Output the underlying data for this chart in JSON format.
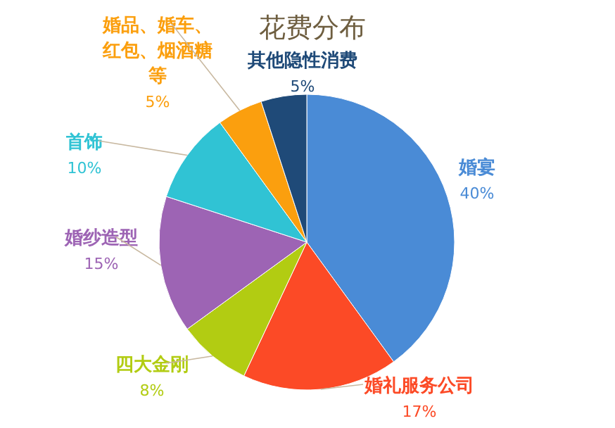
{
  "chart_data": {
    "type": "pie",
    "title": "花费分布",
    "categories": [
      "婚宴",
      "婚礼服务公司",
      "四大金刚",
      "婚纱造型",
      "首饰",
      "婚品、婚车、红包、烟酒糖等",
      "其他隐性消费"
    ],
    "values": [
      40,
      17,
      8,
      15,
      10,
      5,
      5
    ],
    "colors": [
      "#4a8bd6",
      "#fc4a26",
      "#b2cc12",
      "#9d64b4",
      "#30c3d4",
      "#fb9f0e",
      "#1f4a78"
    ],
    "value_labels": [
      "40%",
      "17%",
      "8%",
      "15%",
      "10%",
      "5%",
      "5%"
    ]
  }
}
